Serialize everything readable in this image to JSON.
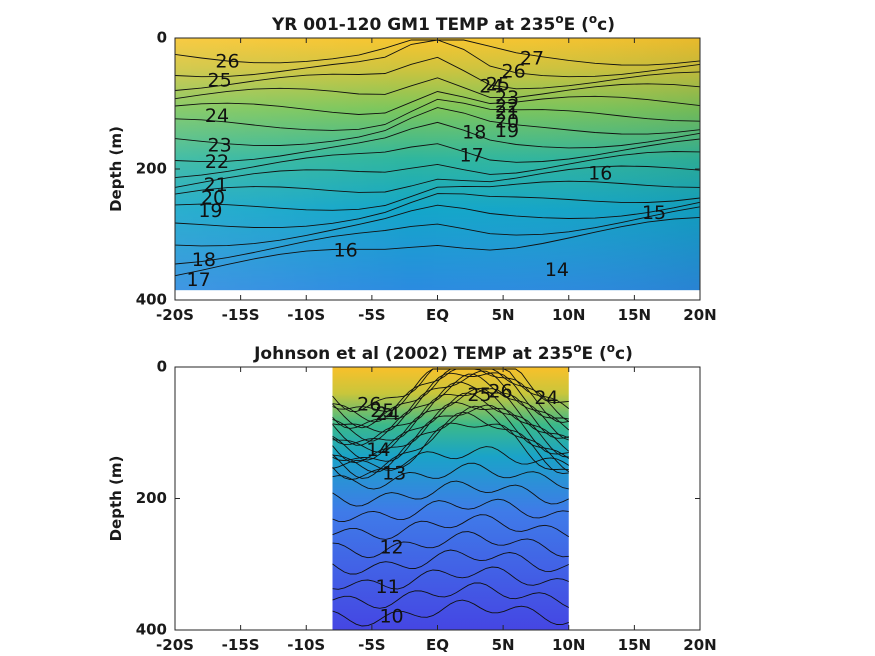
{
  "chart_data": [
    {
      "type": "contour",
      "title": "YR 001-120 GM1 TEMP at 235",
      "title_degree": "o",
      "title_suffix": "E (",
      "title_unit_o": "o",
      "title_unit_end": "c)",
      "ylabel": "Depth (m)",
      "xlim": [
        -20,
        20
      ],
      "ylim": [
        0,
        400
      ],
      "y_reversed": true,
      "x_ticks": [
        {
          "value": -20,
          "label": "-20S"
        },
        {
          "value": -15,
          "label": "-15S"
        },
        {
          "value": -10,
          "label": "-10S"
        },
        {
          "value": -5,
          "label": "-5S"
        },
        {
          "value": 0,
          "label": "EQ"
        },
        {
          "value": 5,
          "label": "5N"
        },
        {
          "value": 10,
          "label": "10N"
        },
        {
          "value": 15,
          "label": "15N"
        },
        {
          "value": 20,
          "label": "20N"
        }
      ],
      "y_ticks": [
        {
          "value": 0,
          "label": "0"
        },
        {
          "value": 200,
          "label": "200"
        },
        {
          "value": 400,
          "label": "400"
        }
      ],
      "data_extent": {
        "x": [
          -20,
          20
        ],
        "depth": [
          0,
          385
        ]
      },
      "contour_labels": [
        {
          "text": "26",
          "x": -16.0,
          "depth": 37
        },
        {
          "text": "25",
          "x": -16.6,
          "depth": 66
        },
        {
          "text": "24",
          "x": -16.8,
          "depth": 120
        },
        {
          "text": "23",
          "x": -16.6,
          "depth": 165
        },
        {
          "text": "22",
          "x": -16.8,
          "depth": 190
        },
        {
          "text": "21",
          "x": -16.9,
          "depth": 225
        },
        {
          "text": "20",
          "x": -17.1,
          "depth": 245
        },
        {
          "text": "19",
          "x": -17.3,
          "depth": 265
        },
        {
          "text": "18",
          "x": -17.8,
          "depth": 340
        },
        {
          "text": "17",
          "x": -18.2,
          "depth": 370
        },
        {
          "text": "16",
          "x": -7.0,
          "depth": 325
        },
        {
          "text": "27",
          "x": 7.2,
          "depth": 32
        },
        {
          "text": "26",
          "x": 5.8,
          "depth": 52
        },
        {
          "text": "25",
          "x": 4.6,
          "depth": 72
        },
        {
          "text": "24",
          "x": 4.1,
          "depth": 75
        },
        {
          "text": "23",
          "x": 5.3,
          "depth": 92
        },
        {
          "text": "22",
          "x": 5.3,
          "depth": 105
        },
        {
          "text": "21",
          "x": 5.3,
          "depth": 115
        },
        {
          "text": "20",
          "x": 5.3,
          "depth": 128
        },
        {
          "text": "19",
          "x": 5.3,
          "depth": 143
        },
        {
          "text": "18",
          "x": 2.8,
          "depth": 145
        },
        {
          "text": "17",
          "x": 2.6,
          "depth": 180
        },
        {
          "text": "16",
          "x": 12.4,
          "depth": 208
        },
        {
          "text": "15",
          "x": 16.5,
          "depth": 268
        },
        {
          "text": "14",
          "x": 9.1,
          "depth": 355
        }
      ]
    },
    {
      "type": "contour",
      "title": "Johnson et al (2002) TEMP at 235",
      "title_degree": "o",
      "title_suffix": "E (",
      "title_unit_o": "o",
      "title_unit_end": "c)",
      "ylabel": "Depth (m)",
      "xlim": [
        -20,
        20
      ],
      "ylim": [
        0,
        400
      ],
      "y_reversed": true,
      "x_ticks": [
        {
          "value": -20,
          "label": "-20S"
        },
        {
          "value": -15,
          "label": "-15S"
        },
        {
          "value": -10,
          "label": "-10S"
        },
        {
          "value": -5,
          "label": "-5S"
        },
        {
          "value": 0,
          "label": "EQ"
        },
        {
          "value": 5,
          "label": "5N"
        },
        {
          "value": 10,
          "label": "10N"
        },
        {
          "value": 15,
          "label": "15N"
        },
        {
          "value": 20,
          "label": "20N"
        }
      ],
      "y_ticks": [
        {
          "value": 0,
          "label": "0"
        },
        {
          "value": 200,
          "label": "200"
        },
        {
          "value": 400,
          "label": "400"
        }
      ],
      "data_extent": {
        "x": [
          -8,
          10
        ],
        "depth": [
          0,
          400
        ]
      },
      "contour_labels": [
        {
          "text": "26",
          "x": -5.2,
          "depth": 58
        },
        {
          "text": "25",
          "x": -4.2,
          "depth": 68
        },
        {
          "text": "24",
          "x": -3.8,
          "depth": 72
        },
        {
          "text": "14",
          "x": -4.5,
          "depth": 127
        },
        {
          "text": "13",
          "x": -3.3,
          "depth": 163
        },
        {
          "text": "26",
          "x": 4.8,
          "depth": 38
        },
        {
          "text": "25",
          "x": 3.2,
          "depth": 43
        },
        {
          "text": "24",
          "x": 8.3,
          "depth": 48
        },
        {
          "text": "12",
          "x": -3.5,
          "depth": 275
        },
        {
          "text": "11",
          "x": -3.8,
          "depth": 335
        },
        {
          "text": "10",
          "x": -3.5,
          "depth": 380
        }
      ]
    }
  ]
}
